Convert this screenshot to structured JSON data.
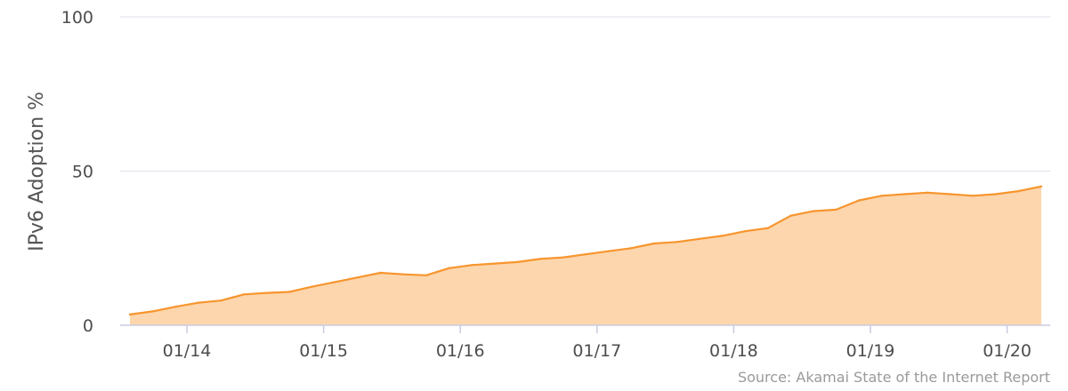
{
  "chart_data": {
    "type": "area",
    "title": "",
    "xlabel": "",
    "ylabel": "IPv6 Adoption %",
    "ylim": [
      0,
      100
    ],
    "y_ticks": [
      0,
      50,
      100
    ],
    "x_range": [
      "2013-08",
      "2020-04"
    ],
    "x_ticks": [
      {
        "date": "2014-01",
        "label": "01/14"
      },
      {
        "date": "2015-01",
        "label": "01/15"
      },
      {
        "date": "2016-01",
        "label": "01/16"
      },
      {
        "date": "2017-01",
        "label": "01/17"
      },
      {
        "date": "2018-01",
        "label": "01/18"
      },
      {
        "date": "2019-01",
        "label": "01/19"
      },
      {
        "date": "2020-01",
        "label": "01/20"
      }
    ],
    "grid": "horizontal",
    "colors": {
      "line": "#f7952e",
      "fill": "#fdd6ad",
      "grid": "#dde0ea",
      "axis": "#c8cbe0"
    },
    "series": [
      {
        "x": [
          "2013-08",
          "2013-10",
          "2013-12",
          "2014-02",
          "2014-04",
          "2014-06",
          "2014-08",
          "2014-10",
          "2014-12",
          "2015-02",
          "2015-04",
          "2015-06",
          "2015-08",
          "2015-10",
          "2015-12",
          "2016-02",
          "2016-04",
          "2016-06",
          "2016-08",
          "2016-10",
          "2016-12",
          "2017-02",
          "2017-04",
          "2017-06",
          "2017-08",
          "2017-10",
          "2017-12",
          "2018-02",
          "2018-04",
          "2018-06",
          "2018-08",
          "2018-10",
          "2018-12",
          "2019-02",
          "2019-04",
          "2019-06",
          "2019-08",
          "2019-10",
          "2019-12",
          "2020-02",
          "2020-04"
        ],
        "y": [
          3.5,
          4.5,
          6.0,
          7.3,
          8.0,
          10.0,
          10.5,
          10.8,
          12.5,
          14.0,
          15.5,
          17.0,
          16.5,
          16.2,
          18.5,
          19.5,
          20.0,
          20.5,
          21.5,
          22.0,
          23.0,
          24.0,
          25.0,
          26.5,
          27.0,
          28.0,
          29.0,
          30.5,
          31.5,
          35.5,
          37.0,
          37.5,
          40.5,
          42.0,
          42.5,
          43.0,
          42.5,
          42.0,
          42.5,
          43.5,
          45.0
        ]
      }
    ],
    "annotations": [
      "Source: Akamai State of the Internet Report"
    ]
  }
}
